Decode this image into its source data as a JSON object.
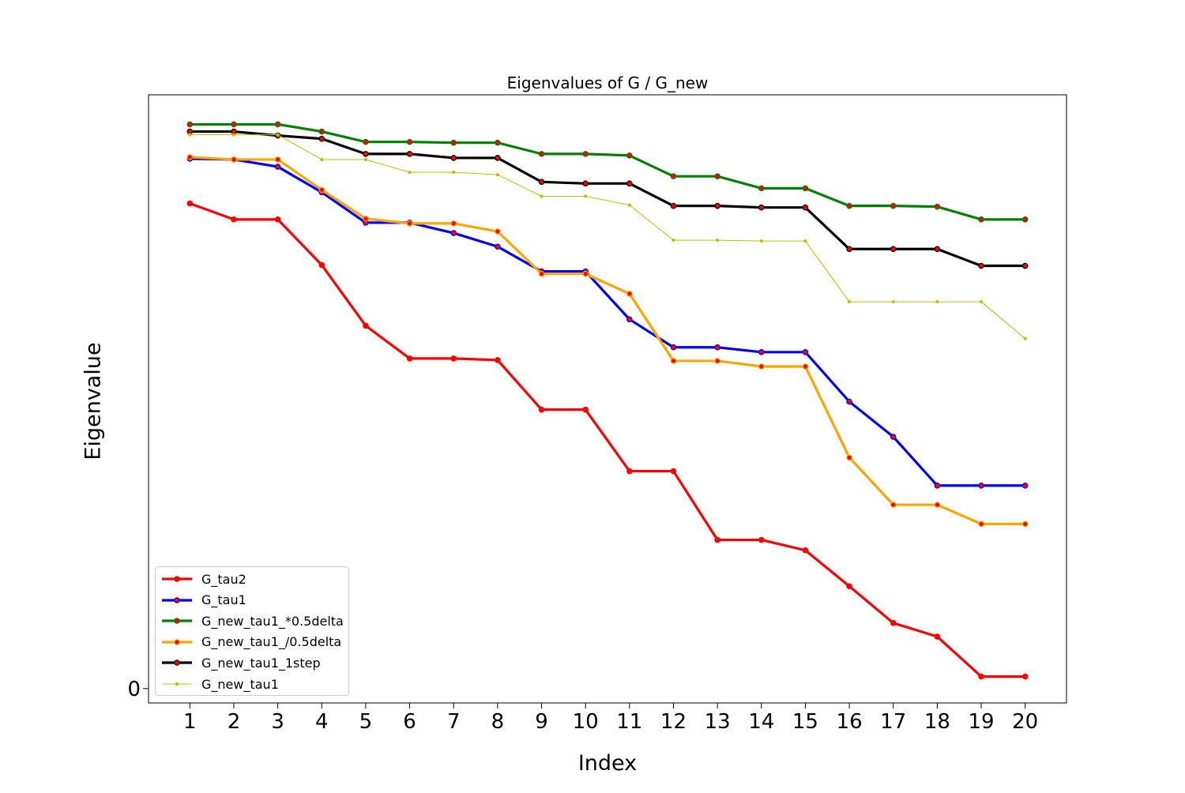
{
  "chart_data": {
    "type": "line",
    "title": "Eigenvalues of G / G_new",
    "xlabel": "Index",
    "ylabel": "Eigenvalue",
    "x": [
      1,
      2,
      3,
      4,
      5,
      6,
      7,
      8,
      9,
      10,
      11,
      12,
      13,
      14,
      15,
      16,
      17,
      18,
      19,
      20
    ],
    "y_ticks": [
      {
        "value": 0,
        "label": "0"
      }
    ],
    "ylim": [
      -1.8,
      74.3
    ],
    "xlim": [
      0.06,
      20.94
    ],
    "grid": false,
    "legend_position": "lower-left",
    "series": [
      {
        "name": "G_tau2",
        "color": "#ff0000",
        "marker_color": "#ff0000",
        "style": "thick",
        "values": [
          60.7,
          58.7,
          58.7,
          53.0,
          45.4,
          41.3,
          41.3,
          41.1,
          34.9,
          34.9,
          27.2,
          27.2,
          18.6,
          18.6,
          17.3,
          12.8,
          8.2,
          6.5,
          1.5,
          1.5
        ]
      },
      {
        "name": "G_tau1",
        "color": "#0000ff",
        "marker_color": "#ff0000",
        "style": "thick",
        "values": [
          66.3,
          66.2,
          65.3,
          62.1,
          58.3,
          58.3,
          57.0,
          55.3,
          52.2,
          52.2,
          46.2,
          42.7,
          42.7,
          42.1,
          42.1,
          35.9,
          31.5,
          25.4,
          25.4,
          25.4
        ]
      },
      {
        "name": "G_new_tau1_*0.5delta",
        "color": "#008000",
        "marker_color": "#ff0000",
        "style": "thick",
        "values": [
          70.6,
          70.6,
          70.6,
          69.7,
          68.4,
          68.4,
          68.3,
          68.3,
          66.9,
          66.9,
          66.7,
          64.1,
          64.1,
          62.6,
          62.6,
          60.4,
          60.4,
          60.3,
          58.7,
          58.7
        ]
      },
      {
        "name": "G_new_tau1_/0.5delta",
        "color": "#ffa500",
        "marker_color": "#ff0000",
        "style": "thick",
        "values": [
          66.5,
          66.2,
          66.2,
          62.4,
          58.8,
          58.2,
          58.2,
          57.2,
          51.9,
          51.9,
          49.4,
          41.0,
          41.0,
          40.3,
          40.3,
          28.9,
          23.0,
          23.0,
          20.6,
          20.6
        ]
      },
      {
        "name": "G_new_tau1_1step",
        "color": "#000000",
        "marker_color": "#ff0000",
        "style": "thick",
        "values": [
          69.7,
          69.7,
          69.2,
          68.8,
          66.9,
          66.9,
          66.4,
          66.4,
          63.4,
          63.2,
          63.2,
          60.4,
          60.4,
          60.2,
          60.2,
          55.0,
          55.0,
          55.0,
          52.9,
          52.9
        ]
      },
      {
        "name": "G_new_tau1",
        "color": "#bfbf00",
        "marker_color": "#bfbf00",
        "style": "thin",
        "values": [
          69.3,
          69.3,
          69.3,
          66.2,
          66.2,
          64.6,
          64.6,
          64.3,
          61.6,
          61.6,
          60.5,
          56.1,
          56.1,
          56.0,
          56.0,
          48.4,
          48.4,
          48.4,
          48.4,
          43.8
        ]
      }
    ]
  }
}
